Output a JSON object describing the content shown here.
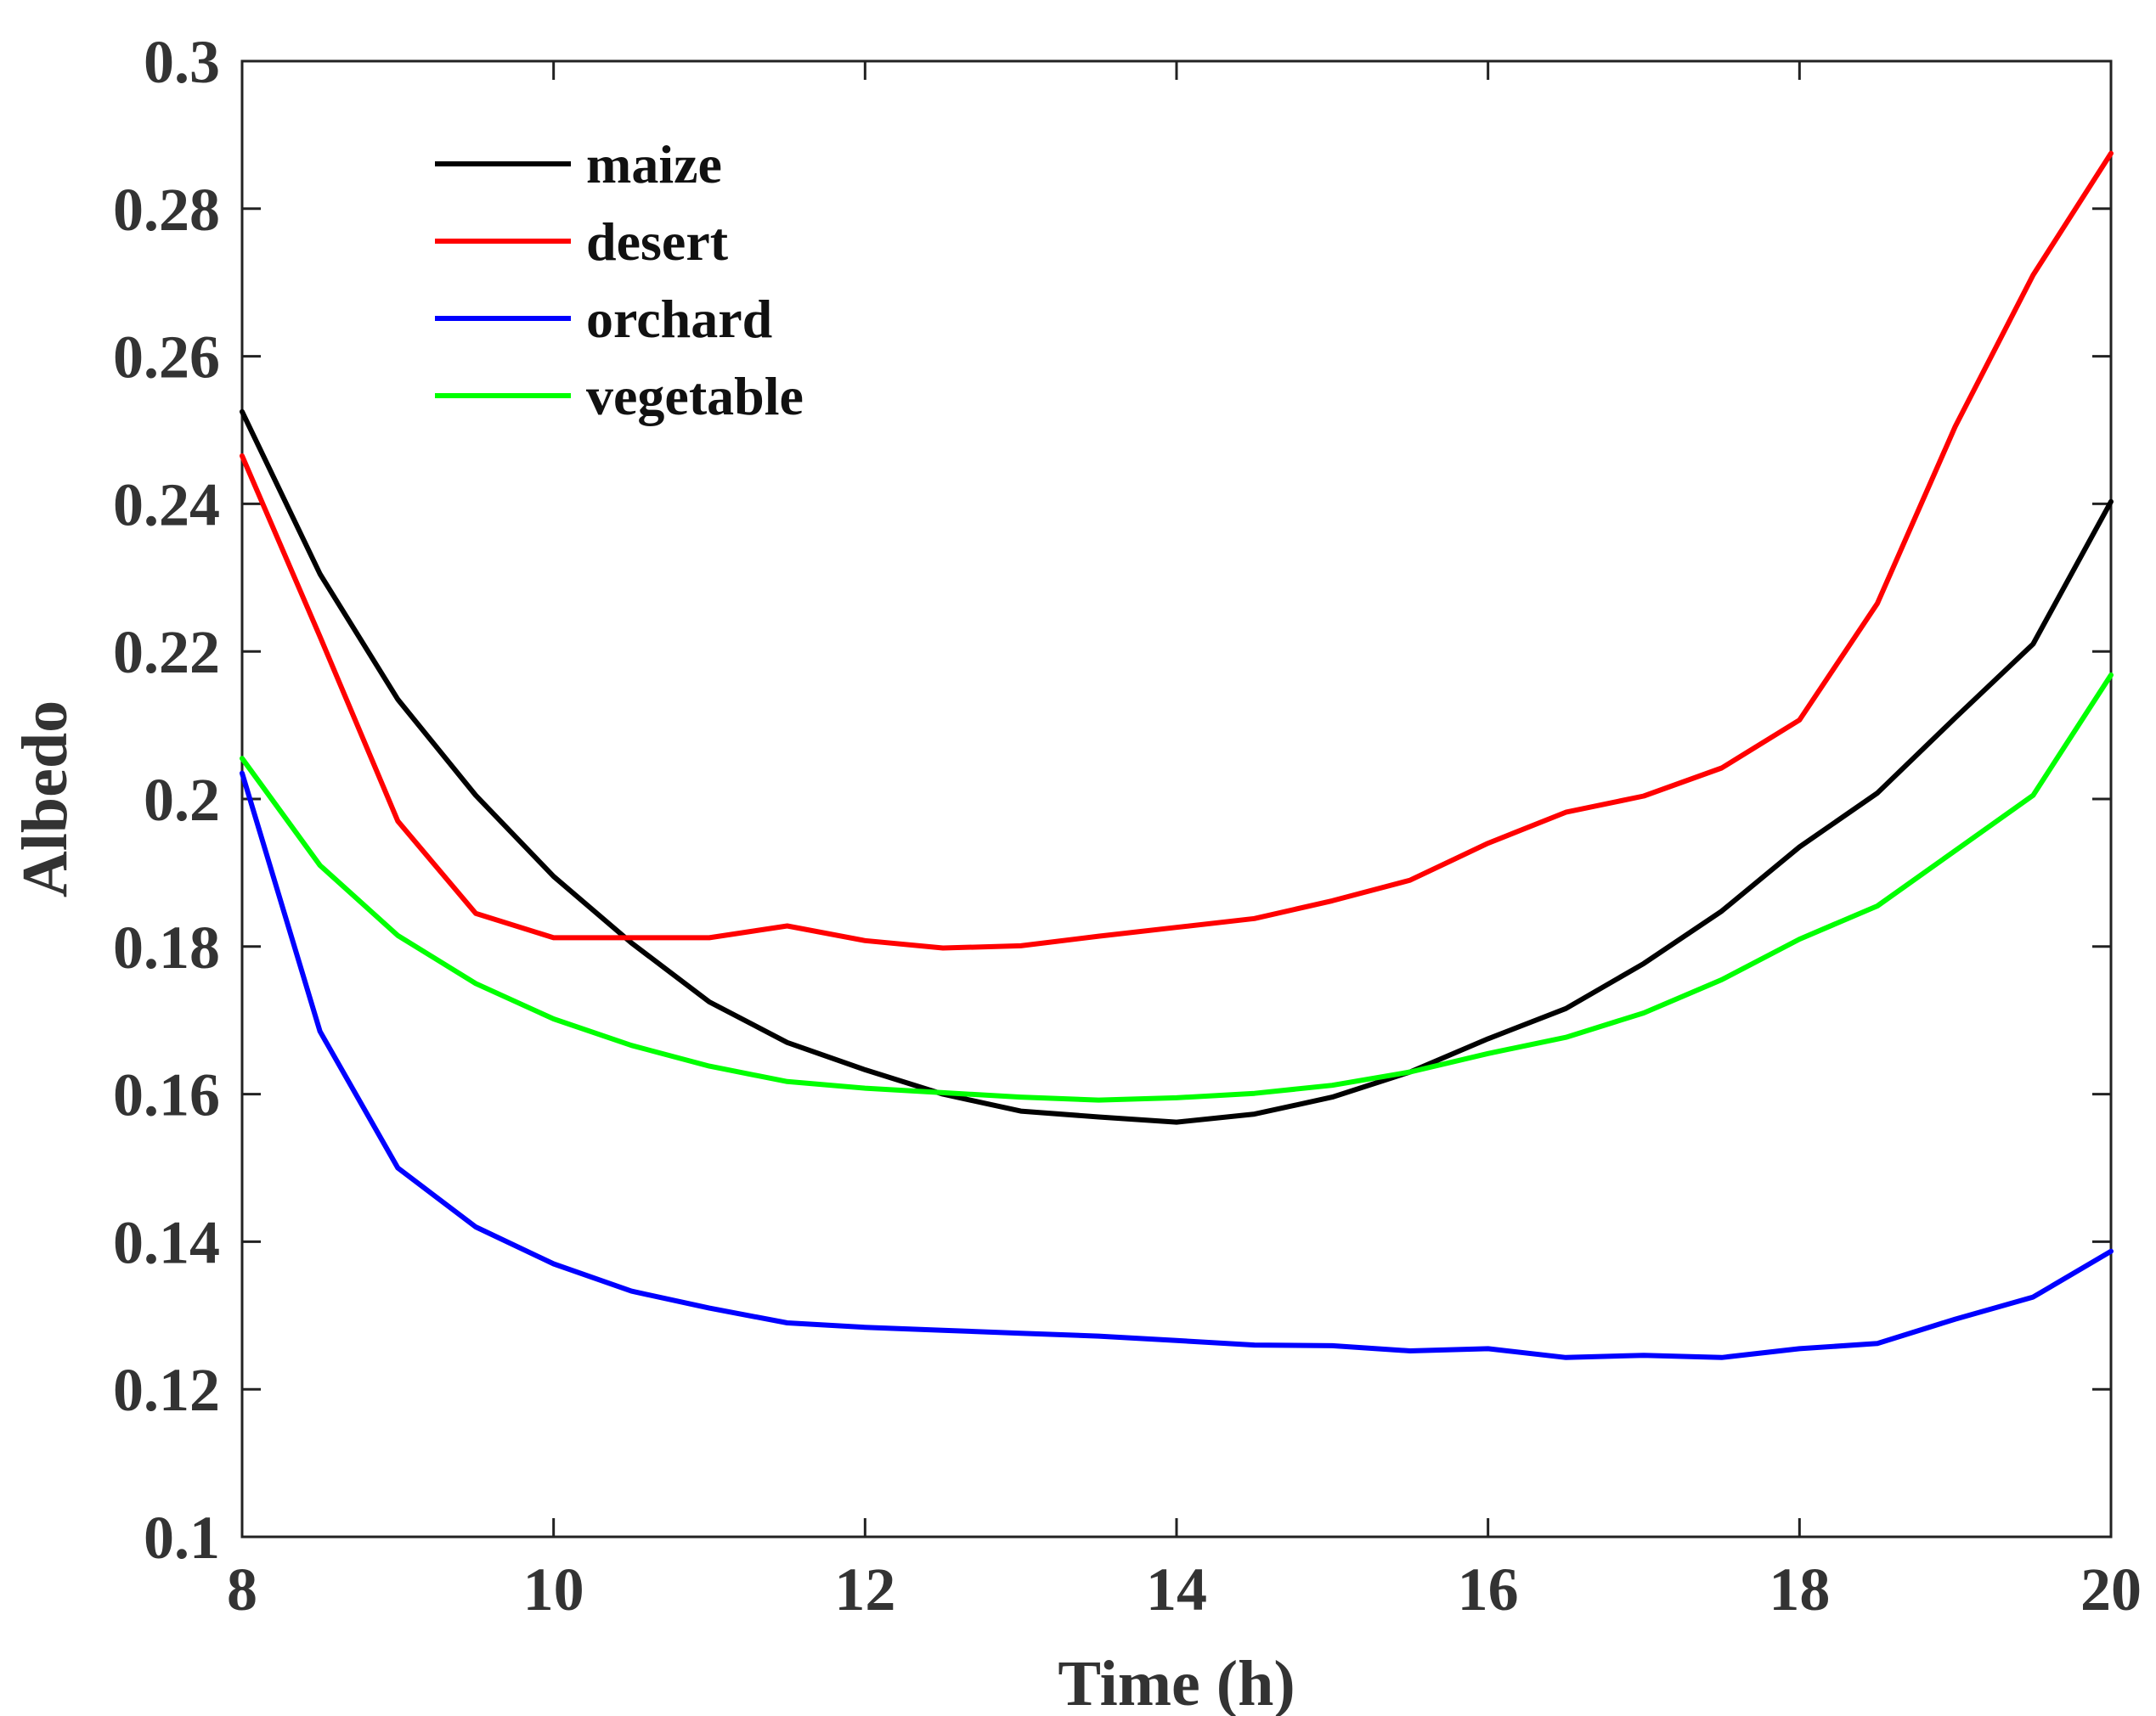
{
  "chart_data": {
    "type": "line",
    "title": "",
    "xlabel": "Time (h)",
    "ylabel": "Albedo",
    "xlim": [
      8,
      20
    ],
    "ylim": [
      0.1,
      0.3
    ],
    "xticks": [
      8,
      10,
      12,
      14,
      16,
      18,
      20
    ],
    "xtick_labels": [
      "8",
      "10",
      "12",
      "14",
      "16",
      "18",
      "20"
    ],
    "yticks": [
      0.1,
      0.12,
      0.14,
      0.16,
      0.18,
      0.2,
      0.22,
      0.24,
      0.26,
      0.28,
      0.3
    ],
    "ytick_labels": [
      "0.1",
      "0.12",
      "0.14",
      "0.16",
      "0.18",
      "0.2",
      "0.22",
      "0.24",
      "0.26",
      "0.28",
      "0.3"
    ],
    "grid": false,
    "legend_position": "top-left",
    "x": [
      8,
      8.5,
      9,
      9.5,
      10,
      10.5,
      11,
      11.5,
      12,
      12.5,
      13,
      13.5,
      14,
      14.5,
      15,
      15.5,
      16,
      16.5,
      17,
      17.5,
      18,
      18.5,
      19,
      19.5,
      20
    ],
    "series": [
      {
        "name": "maize",
        "color": "#000000",
        "values": [
          0.2525,
          0.2305,
          0.2135,
          0.2005,
          0.1895,
          0.1805,
          0.1725,
          0.167,
          0.1633,
          0.16,
          0.1577,
          0.1569,
          0.1562,
          0.1573,
          0.1596,
          0.163,
          0.1675,
          0.1716,
          0.1777,
          0.1848,
          0.1935,
          0.2008,
          0.211,
          0.221,
          0.2403
        ]
      },
      {
        "name": "desert",
        "color": "#ff0000",
        "values": [
          0.2465,
          0.222,
          0.197,
          0.1845,
          0.1812,
          0.1812,
          0.1812,
          0.1828,
          0.1808,
          0.1798,
          0.1801,
          0.1814,
          0.1826,
          0.1838,
          0.1862,
          0.189,
          0.194,
          0.1982,
          0.2004,
          0.2042,
          0.2107,
          0.2265,
          0.2505,
          0.271,
          0.2875
        ]
      },
      {
        "name": "orchard",
        "color": "#0000ff",
        "values": [
          0.2035,
          0.1685,
          0.15,
          0.142,
          0.137,
          0.1333,
          0.131,
          0.129,
          0.1284,
          0.128,
          0.1276,
          0.1272,
          0.1266,
          0.126,
          0.1259,
          0.1252,
          0.1255,
          0.1243,
          0.1246,
          0.1243,
          0.1255,
          0.1262,
          0.1295,
          0.1325,
          0.1387
        ]
      },
      {
        "name": "vegetable",
        "color": "#00ff00",
        "values": [
          0.2055,
          0.191,
          0.1815,
          0.175,
          0.1702,
          0.1666,
          0.1638,
          0.1617,
          0.1608,
          0.1602,
          0.1596,
          0.1592,
          0.1595,
          0.1601,
          0.1612,
          0.163,
          0.1655,
          0.1677,
          0.171,
          0.1755,
          0.181,
          0.1855,
          0.193,
          0.2005,
          0.2168
        ]
      }
    ]
  }
}
